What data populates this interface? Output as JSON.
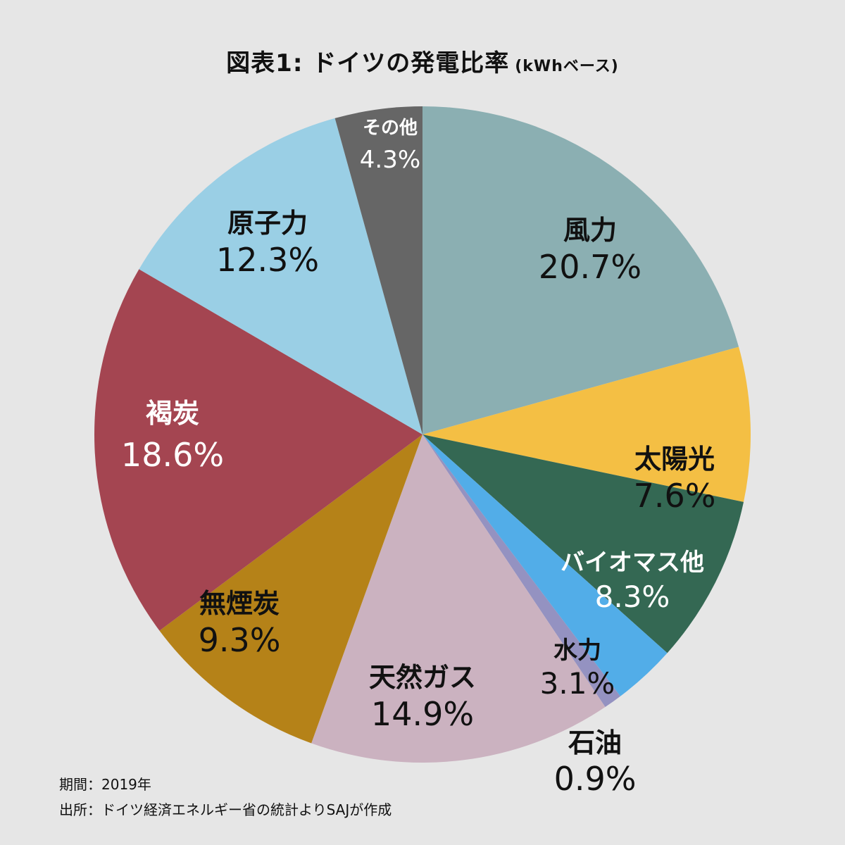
{
  "title": "図表1: ドイツの発電比率",
  "subtitle": "(kWhベース)",
  "footer": {
    "period": "期間：2019年",
    "source": "出所：ドイツ経済エネルギー省の統計よりSAJが作成"
  },
  "chart_data": {
    "type": "pie",
    "title": "図表1: ドイツの発電比率 (kWhベース)",
    "start": "12 o'clock, clockwise",
    "slices": [
      {
        "name": "風力",
        "value": 20.7,
        "label": "20.7%",
        "color": "#8bafb2",
        "text_color": "#111111"
      },
      {
        "name": "太陽光",
        "value": 7.6,
        "label": "7.6%",
        "color": "#f4bf44",
        "text_color": "#111111"
      },
      {
        "name": "バイオマス他",
        "value": 8.3,
        "label": "8.3%",
        "color": "#346853",
        "text_color": "#ffffff"
      },
      {
        "name": "水力",
        "value": 3.1,
        "label": "3.1%",
        "color": "#52ade8",
        "text_color": "#111111"
      },
      {
        "name": "石油",
        "value": 0.9,
        "label": "0.9%",
        "color": "#9492c1",
        "text_color": "#111111"
      },
      {
        "name": "天然ガス",
        "value": 14.9,
        "label": "14.9%",
        "color": "#cbb2c0",
        "text_color": "#111111"
      },
      {
        "name": "無煙炭",
        "value": 9.3,
        "label": "9.3%",
        "color": "#b58218",
        "text_color": "#111111"
      },
      {
        "name": "褐炭",
        "value": 18.6,
        "label": "18.6%",
        "color": "#a44551",
        "text_color": "#ffffff"
      },
      {
        "name": "原子力",
        "value": 12.3,
        "label": "12.3%",
        "color": "#9acfe5",
        "text_color": "#111111"
      },
      {
        "name": "その他",
        "value": 4.3,
        "label": "4.3%",
        "color": "#666666",
        "text_color": "#ffffff"
      }
    ]
  }
}
